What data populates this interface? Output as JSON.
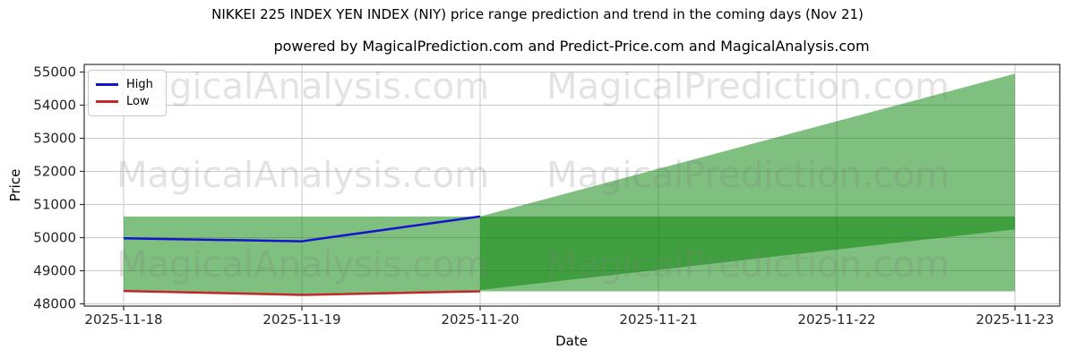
{
  "title": "NIKKEI 225 INDEX YEN INDEX (NIY) price range prediction and trend in the coming days (Nov 21)",
  "subtitle": "powered by MagicalPrediction.com and Predict-Price.com and MagicalAnalysis.com",
  "watermarks": {
    "left_text": "MagicalAnalysis.com",
    "right_text": "MagicalPrediction.com",
    "color": "#808080",
    "opacity": 0.22
  },
  "legend": {
    "items": [
      {
        "label": "High",
        "color": "#1414cc"
      },
      {
        "label": "Low",
        "color": "#c22828"
      }
    ]
  },
  "colors": {
    "grid": "#c9c9c9",
    "spine": "#333333",
    "tick_text": "#262626",
    "band_green": "#008000"
  },
  "chart_data": {
    "type": "line",
    "title": "NIKKEI 225 INDEX YEN INDEX (NIY) price range prediction and trend in the coming days (Nov 21)",
    "xlabel": "Date",
    "ylabel": "Price",
    "x": [
      "2025-11-18",
      "2025-11-19",
      "2025-11-20",
      "2025-11-21",
      "2025-11-22",
      "2025-11-23"
    ],
    "ylim": [
      47930,
      55290
    ],
    "yticks": [
      48000,
      49000,
      50000,
      51000,
      52000,
      53000,
      54000,
      55000
    ],
    "grid": true,
    "legend_position": "upper left",
    "series": [
      {
        "name": "High",
        "color": "#1414cc",
        "x": [
          "2025-11-18",
          "2025-11-19",
          "2025-11-20"
        ],
        "values": [
          49980,
          49890,
          50640
        ]
      },
      {
        "name": "Low",
        "color": "#c22828",
        "x": [
          "2025-11-18",
          "2025-11-19",
          "2025-11-20"
        ],
        "values": [
          48390,
          48270,
          48380
        ]
      }
    ],
    "bands": [
      {
        "name": "range-band",
        "color": "#008000",
        "alpha": 0.5,
        "x": [
          "2025-11-18",
          "2025-11-19",
          "2025-11-20",
          "2025-11-23"
        ],
        "upper": [
          50640,
          50640,
          50640,
          50640
        ],
        "lower": [
          48390,
          48270,
          48380,
          48380
        ]
      },
      {
        "name": "forecast-fan-band",
        "color": "#008000",
        "alpha": 0.5,
        "x": [
          "2025-11-20",
          "2025-11-23"
        ],
        "upper": [
          50640,
          54950
        ],
        "lower": [
          48420,
          50250
        ]
      }
    ]
  }
}
